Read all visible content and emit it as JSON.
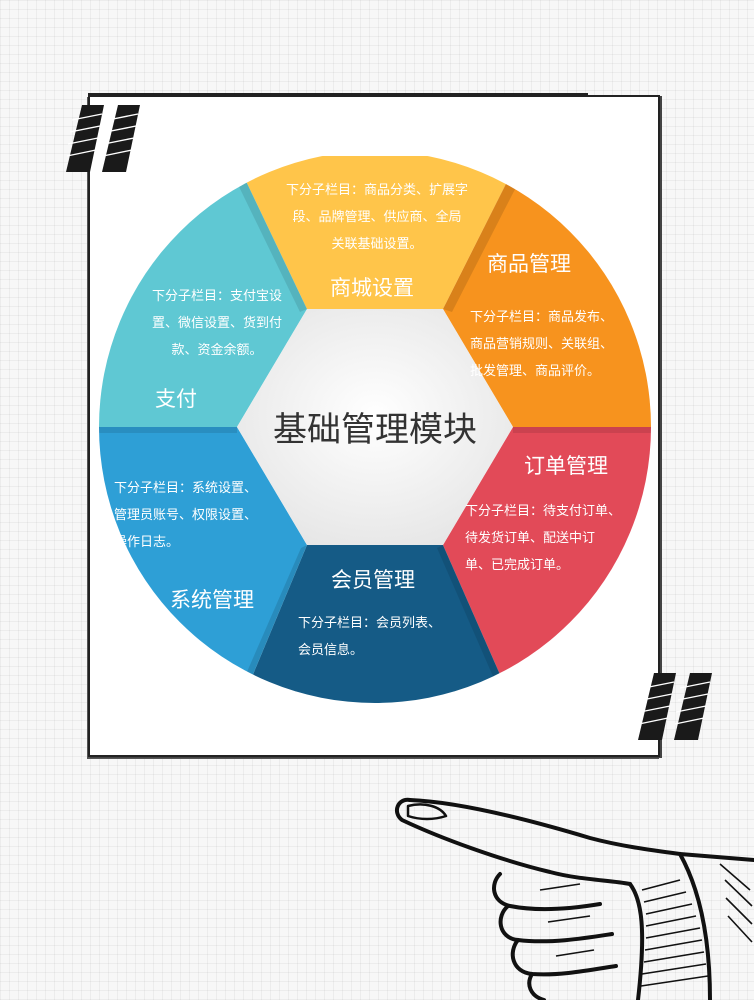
{
  "center": {
    "title": "基础管理模块"
  },
  "segments": {
    "mall": {
      "title": "商城设置",
      "desc_lines": [
        "下分子栏目：商品分类、扩展字",
        "段、品牌管理、供应商、全局",
        "关联基础设置。"
      ],
      "color": "#ffc54a"
    },
    "product": {
      "title": "商品管理",
      "desc_lines": [
        "下分子栏目：商品发布、",
        "商品营销规则、关联组、",
        "批发管理、商品评价。"
      ],
      "color": "#f7931e"
    },
    "order": {
      "title": "订单管理",
      "desc_lines": [
        "下分子栏目：待支付订单、",
        "待发货订单、配送中订",
        "单、已完成订单。"
      ],
      "color": "#e24a58"
    },
    "member": {
      "title": "会员管理",
      "desc_lines": [
        "下分子栏目：会员列表、",
        "会员信息。"
      ],
      "color": "#155b86"
    },
    "system": {
      "title": "系统管理",
      "desc_lines": [
        "下分子栏目：系统设置、",
        "管理员账号、权限设置、",
        "操作日志。"
      ],
      "color": "#2e9fd6"
    },
    "payment": {
      "title": "支付",
      "desc_lines": [
        "下分子栏目：支付宝设",
        "置、微信设置、货到付",
        "款、资金余额。"
      ],
      "color": "#5fc8d3"
    }
  },
  "icons": {
    "quote_open": "quote-open-icon",
    "quote_close": "quote-close-icon",
    "hand": "pointing-hand-icon"
  }
}
